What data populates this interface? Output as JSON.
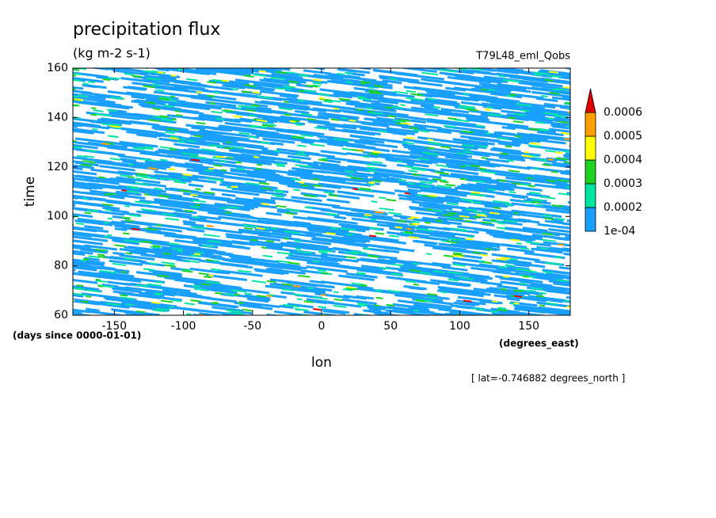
{
  "chart_data": {
    "type": "contour",
    "title": "precipitation flux",
    "units": "(kg m-2 s-1)",
    "run_label": "T79L48_eml_Qobs",
    "x_label": "lon",
    "y_label": "time",
    "x_units": "(degrees_east)",
    "y_units": "(days since 0000-01-01)",
    "footnote": "[ lat=-0.746882 degrees_north ]",
    "xlim": [
      -180,
      180
    ],
    "xticks": [
      -150,
      -100,
      -50,
      0,
      50,
      100,
      150
    ],
    "ylim": [
      60,
      160
    ],
    "yticks": [
      60,
      80,
      100,
      120,
      140,
      160
    ],
    "levels": [
      {
        "value": 0.0001,
        "label": "1e-04"
      },
      0.0002,
      0.0003,
      0.0004,
      0.0005,
      0.0006
    ],
    "colors": [
      "#19a0ff",
      "#00e6a0",
      "#1ed21e",
      "#ffff00",
      "#ff9e00",
      "#e10000"
    ]
  }
}
